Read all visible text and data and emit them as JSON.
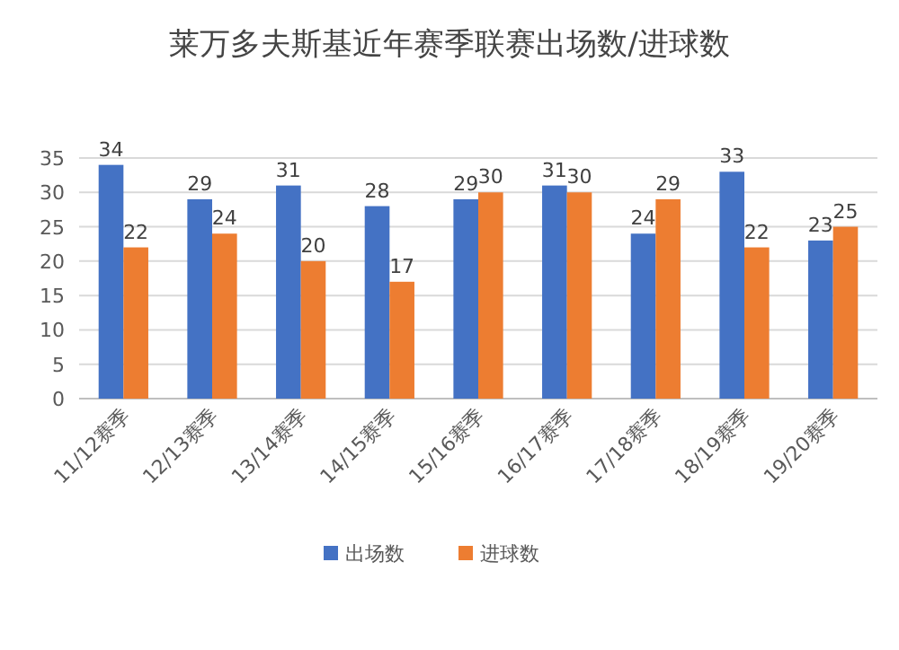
{
  "chart_data": {
    "type": "bar",
    "title": "莱万多夫斯基近年赛季联赛出场数/进球数",
    "categories": [
      "11/12赛季",
      "12/13赛季",
      "13/14赛季",
      "14/15赛季",
      "15/16赛季",
      "16/17赛季",
      "17/18赛季",
      "18/19赛季",
      "19/20赛季"
    ],
    "series": [
      {
        "name": "出场数",
        "color": "#4472c4",
        "values": [
          34,
          29,
          31,
          28,
          29,
          31,
          24,
          33,
          23
        ]
      },
      {
        "name": "进球数",
        "color": "#ed7d31",
        "values": [
          22,
          24,
          20,
          17,
          30,
          30,
          29,
          22,
          25
        ]
      }
    ],
    "ylim": [
      0,
      35
    ],
    "yticks": [
      0,
      5,
      10,
      15,
      20,
      25,
      30,
      35
    ],
    "grid": "y",
    "legend": "bottom",
    "data_labels": true
  }
}
